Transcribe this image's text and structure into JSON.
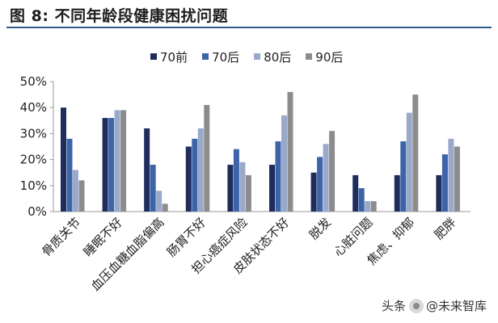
{
  "figure": {
    "label": "图 8:",
    "title": "不同年龄段健康困扰问题"
  },
  "watermark": {
    "prefix": "头条",
    "account": "@未来智库"
  },
  "chart_data": {
    "type": "bar",
    "categories": [
      "骨质关节",
      "睡眠不好",
      "血压血糖血脂偏高",
      "肠胃不好",
      "担心癌症风险",
      "皮肤状态不好",
      "脱发",
      "心脏问题",
      "焦虑、抑郁",
      "肥胖"
    ],
    "series": [
      {
        "name": "70前",
        "color": "#1f2d5c",
        "values": [
          40,
          36,
          32,
          25,
          18,
          18,
          15,
          14,
          14,
          14
        ]
      },
      {
        "name": "70后",
        "color": "#3d63a8",
        "values": [
          28,
          36,
          18,
          28,
          24,
          27,
          21,
          9,
          27,
          22
        ]
      },
      {
        "name": "80后",
        "color": "#98a9c9",
        "values": [
          16,
          39,
          8,
          32,
          19,
          37,
          26,
          4,
          38,
          28
        ]
      },
      {
        "name": "90后",
        "color": "#8c8c8c",
        "values": [
          12,
          39,
          3,
          41,
          14,
          46,
          31,
          4,
          45,
          25
        ]
      }
    ],
    "ylim": [
      0,
      50
    ],
    "yticks": [
      0,
      10,
      20,
      30,
      40,
      50
    ],
    "ytick_labels": [
      "0%",
      "10%",
      "20%",
      "30%",
      "40%",
      "50%"
    ],
    "xlabel": "",
    "ylabel": "",
    "grid": false,
    "legend_position": "top"
  }
}
